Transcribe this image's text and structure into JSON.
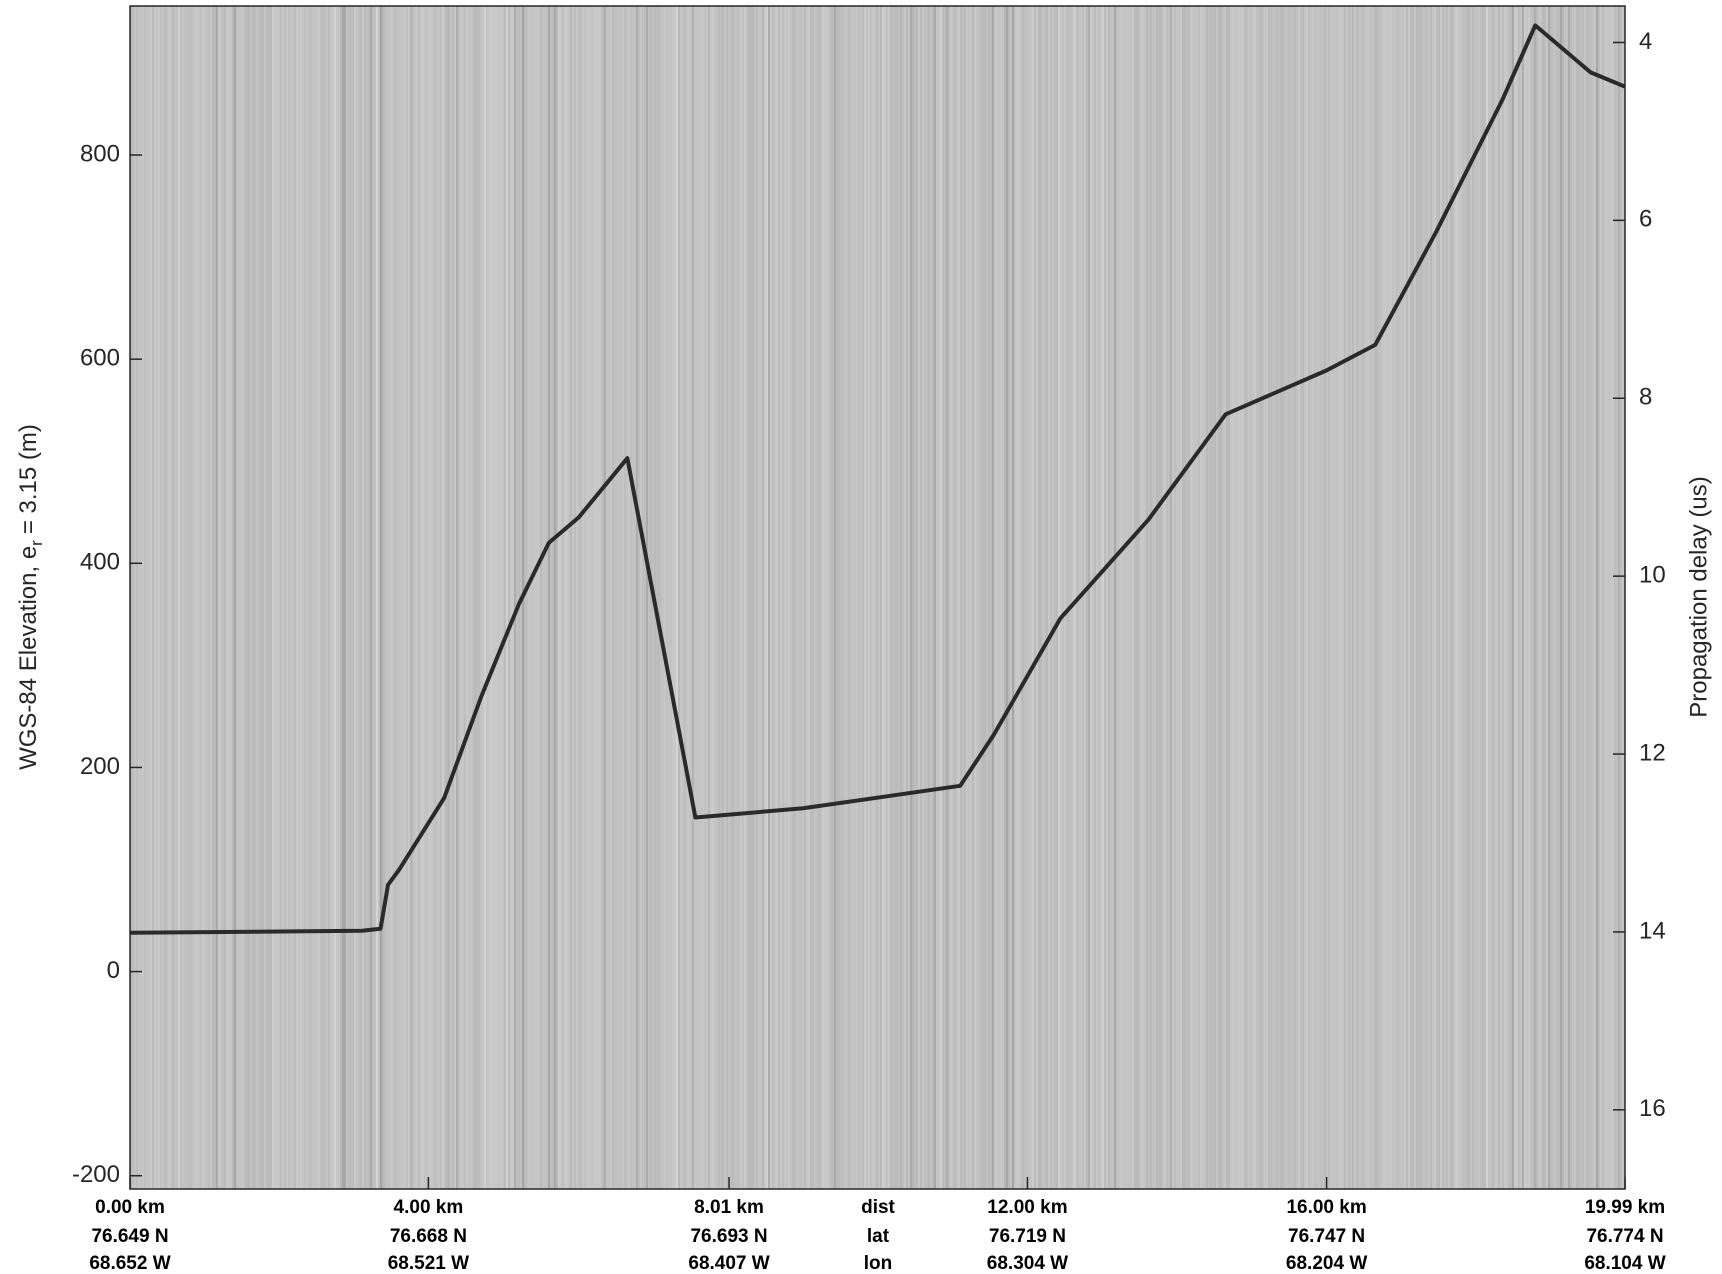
{
  "chart_data": {
    "type": "line",
    "ylabel": {
      "text": "WGS-84 Elevation, e",
      "subscript": "r",
      "suffix": "= 3.15 (m)"
    },
    "y2label": "Propagation delay (us)",
    "x": [
      0,
      3.1,
      3.35,
      3.45,
      3.6,
      4.2,
      4.7,
      5.2,
      5.6,
      6.0,
      6.65,
      7.56,
      9.0,
      11.1,
      11.55,
      12.44,
      13.62,
      14.65,
      16.0,
      16.65,
      17.46,
      18.35,
      18.79,
      19.53,
      19.99
    ],
    "series": [
      {
        "color": "#2a2a2a",
        "values": [
          38,
          40,
          42,
          85,
          100,
          170,
          270,
          360,
          420,
          445,
          503,
          151,
          160,
          182,
          232,
          346,
          443,
          546,
          589,
          614,
          724,
          854,
          927,
          881,
          867
        ]
      }
    ],
    "xlim": [
      0,
      19.99
    ],
    "xticks": [
      {
        "value": 0,
        "label": "0.00 km"
      },
      {
        "value": 3.99,
        "label": "4.00 km"
      },
      {
        "value": 8.01,
        "label": "8.01 km"
      },
      {
        "value": 12.0,
        "label": "12.00 km"
      },
      {
        "value": 16.0,
        "label": "16.00 km"
      },
      {
        "value": 19.99,
        "label": "19.99 km"
      }
    ],
    "lat_labels": [
      "76.649 N",
      "76.668 N",
      "76.693 N",
      "76.719 N",
      "76.747 N",
      "76.774 N"
    ],
    "lon_labels": [
      "68.652 W",
      "68.521 W",
      "68.407 W",
      "68.304 W",
      "68.204 W",
      "68.104 W"
    ],
    "row_labels": [
      "dist",
      "lat",
      "lon"
    ],
    "ylim": [
      -213,
      946
    ],
    "yticks": [
      -200,
      0,
      200,
      400,
      600,
      800
    ],
    "y2lim": [
      3.59,
      16.89
    ],
    "y2_inverted": true,
    "y2ticks": [
      4,
      6,
      8,
      10,
      12,
      14,
      16
    ]
  }
}
